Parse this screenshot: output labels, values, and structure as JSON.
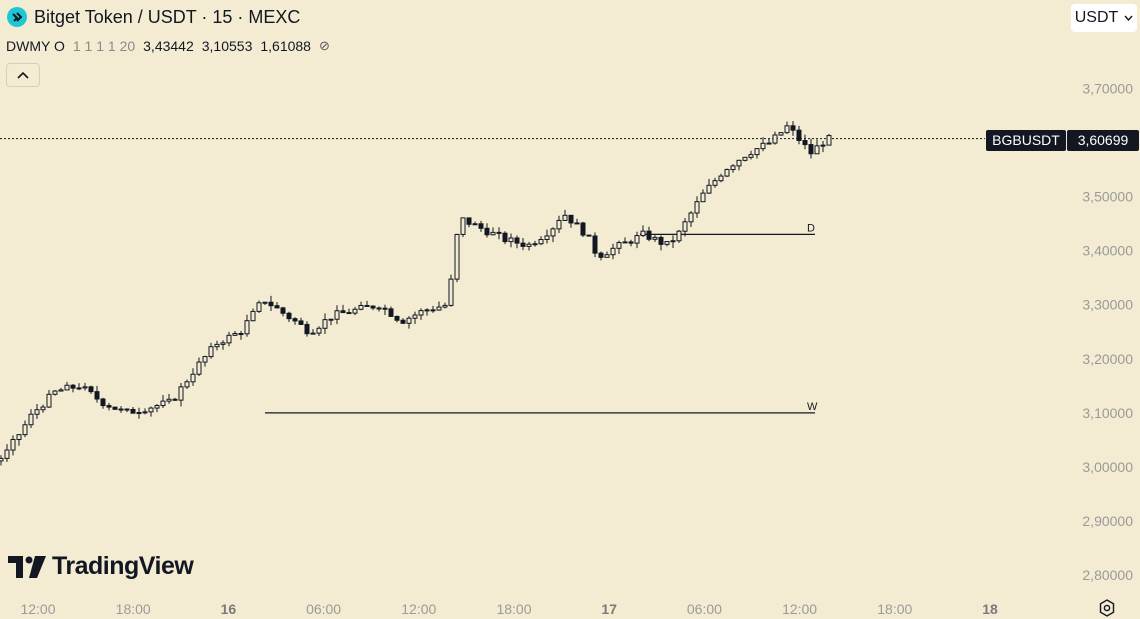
{
  "header": {
    "title": "Bitget Token / USDT · 15 · MEXC",
    "legend_label": "DWMY O",
    "legend_settings": "1 1 1 1 20",
    "legend_values": [
      "3,43442",
      "3,10553",
      "1,61088"
    ],
    "legend_icon": "visibility-off-icon",
    "collapse_icon": "chevron-up-icon"
  },
  "currency_button": {
    "label": "USDT",
    "icon": "chevron-down-icon"
  },
  "price_tag": {
    "symbol": "BGBUSDT",
    "price": "3,60699"
  },
  "logo_text": "TradingView",
  "colors": {
    "background": "#f3ecd2",
    "candle": "#131722",
    "axis_text": "#9a9a9a"
  },
  "chart_data": {
    "type": "candlestick",
    "title": "Bitget Token / USDT · 15 · MEXC",
    "y_ticks": [
      "2,80000",
      "2,90000",
      "3,00000",
      "3,10000",
      "3,20000",
      "3,30000",
      "3,40000",
      "3,50000",
      "3,60000",
      "3,70000"
    ],
    "y_range": [
      2.77,
      3.86
    ],
    "x_ticks": [
      "12:00",
      "18:00",
      "16",
      "06:00",
      "12:00",
      "18:00",
      "17",
      "06:00",
      "12:00",
      "18:00",
      "18"
    ],
    "bold_x_ticks": [
      "16",
      "17",
      "18"
    ],
    "current_price": 3.60699,
    "horizontal_levels": [
      {
        "label": "D",
        "value": 3.43
      },
      {
        "label": "W",
        "value": 3.1
      }
    ],
    "close_path": [
      [
        0.0,
        2.93
      ],
      [
        0.05,
        3.02
      ],
      [
        0.08,
        3.04
      ],
      [
        0.11,
        2.97
      ],
      [
        0.14,
        2.95
      ],
      [
        0.18,
        2.99
      ],
      [
        0.24,
        3.02
      ],
      [
        0.3,
        3.04
      ],
      [
        0.34,
        3.05
      ],
      [
        0.38,
        3.05
      ],
      [
        0.43,
        3.04
      ],
      [
        0.47,
        3.05
      ],
      [
        0.52,
        3.03
      ],
      [
        0.57,
        3.0
      ],
      [
        0.61,
        3.02
      ],
      [
        0.66,
        3.1
      ],
      [
        0.7,
        3.14
      ],
      [
        0.74,
        3.15
      ],
      [
        0.78,
        3.12
      ],
      [
        0.82,
        3.1
      ],
      [
        0.86,
        3.11
      ],
      [
        0.9,
        3.12
      ],
      [
        0.94,
        3.18
      ],
      [
        0.98,
        3.23
      ],
      [
        1.02,
        3.25
      ],
      [
        1.06,
        3.31
      ],
      [
        1.1,
        3.28
      ],
      [
        1.14,
        3.25
      ],
      [
        1.18,
        3.28
      ],
      [
        1.22,
        3.29
      ],
      [
        1.26,
        3.3
      ],
      [
        1.3,
        3.27
      ],
      [
        1.34,
        3.29
      ],
      [
        1.38,
        3.3
      ],
      [
        1.4,
        3.46
      ],
      [
        1.44,
        3.44
      ],
      [
        1.48,
        3.42
      ],
      [
        1.52,
        3.41
      ],
      [
        1.56,
        3.44
      ],
      [
        1.58,
        3.47
      ],
      [
        1.62,
        3.43
      ],
      [
        1.64,
        3.39
      ],
      [
        1.68,
        3.41
      ],
      [
        1.72,
        3.43
      ],
      [
        1.76,
        3.41
      ],
      [
        1.78,
        3.43
      ],
      [
        1.82,
        3.5
      ],
      [
        1.86,
        3.55
      ],
      [
        1.9,
        3.58
      ],
      [
        1.94,
        3.6
      ],
      [
        1.97,
        3.63
      ],
      [
        2.01,
        3.58
      ],
      [
        2.03,
        3.6
      ],
      [
        2.05,
        3.61
      ]
    ]
  }
}
